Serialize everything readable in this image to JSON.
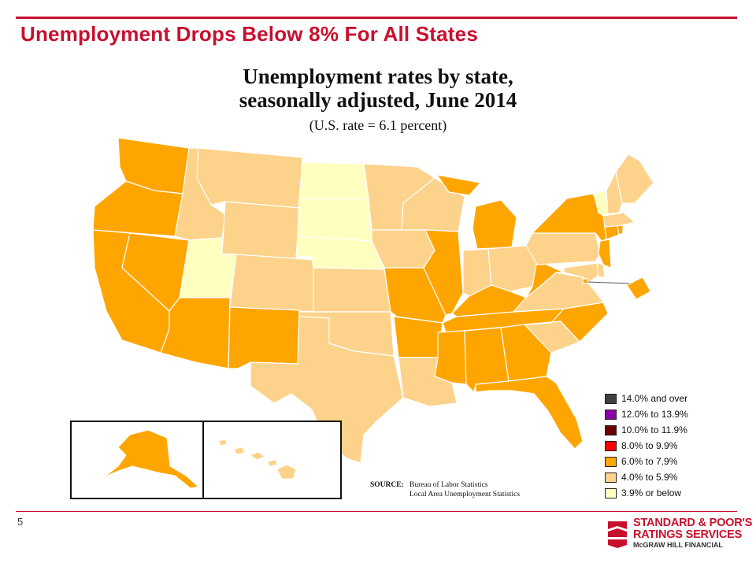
{
  "slide": {
    "title": "Unemployment Drops Below 8% For All States",
    "page_number": "5",
    "accent_color": "#c8102e"
  },
  "map": {
    "title_line1": "Unemployment rates by state,",
    "title_line2": "seasonally adjusted, June 2014",
    "subtitle": "(U.S. rate = 6.1 percent)",
    "source_label": "SOURCE:",
    "source_line1": "Bureau of Labor Statistics",
    "source_line2": "Local Area Unemployment Statistics"
  },
  "legend": [
    {
      "label": "14.0% and over",
      "color": "#404040"
    },
    {
      "label": "12.0% to 13.9%",
      "color": "#8b00a8"
    },
    {
      "label": "10.0% to 11.9%",
      "color": "#6b0000"
    },
    {
      "label": "8.0% to 9.9%",
      "color": "#ff0000"
    },
    {
      "label": "6.0% to 7.9%",
      "color": "#ffa500"
    },
    {
      "label": "4.0% to 5.9%",
      "color": "#fdd28a"
    },
    {
      "label": "3.9% or below",
      "color": "#ffffc0"
    }
  ],
  "state_categories": {
    "WA": "6.0% to 7.9%",
    "OR": "6.0% to 7.9%",
    "CA": "6.0% to 7.9%",
    "NV": "6.0% to 7.9%",
    "AZ": "6.0% to 7.9%",
    "NM": "6.0% to 7.9%",
    "ID": "4.0% to 5.9%",
    "MT": "4.0% to 5.9%",
    "WY": "4.0% to 5.9%",
    "UT": "3.9% or below",
    "CO": "4.0% to 5.9%",
    "ND": "3.9% or below",
    "SD": "3.9% or below",
    "NE": "3.9% or below",
    "KS": "4.0% to 5.9%",
    "OK": "4.0% to 5.9%",
    "TX": "4.0% to 5.9%",
    "MN": "4.0% to 5.9%",
    "IA": "4.0% to 5.9%",
    "MO": "6.0% to 7.9%",
    "AR": "6.0% to 7.9%",
    "LA": "4.0% to 5.9%",
    "WI": "4.0% to 5.9%",
    "IL": "6.0% to 7.9%",
    "MI": "6.0% to 7.9%",
    "IN": "4.0% to 5.9%",
    "OH": "4.0% to 5.9%",
    "KY": "6.0% to 7.9%",
    "TN": "6.0% to 7.9%",
    "MS": "6.0% to 7.9%",
    "AL": "6.0% to 7.9%",
    "GA": "6.0% to 7.9%",
    "FL": "6.0% to 7.9%",
    "SC": "4.0% to 5.9%",
    "NC": "6.0% to 7.9%",
    "VA": "4.0% to 5.9%",
    "WV": "6.0% to 7.9%",
    "PA": "4.0% to 5.9%",
    "NY": "6.0% to 7.9%",
    "NJ": "6.0% to 7.9%",
    "DE": "4.0% to 5.9%",
    "MD": "4.0% to 5.9%",
    "DC": "6.0% to 7.9%",
    "CT": "6.0% to 7.9%",
    "RI": "6.0% to 7.9%",
    "MA": "4.0% to 5.9%",
    "VT": "3.9% or below",
    "NH": "4.0% to 5.9%",
    "ME": "4.0% to 5.9%",
    "AK": "6.0% to 7.9%",
    "HI": "4.0% to 5.9%"
  },
  "logo": {
    "line1": "STANDARD & POOR'S",
    "line2": "RATINGS SERVICES",
    "line3": "McGRAW HILL FINANCIAL"
  }
}
